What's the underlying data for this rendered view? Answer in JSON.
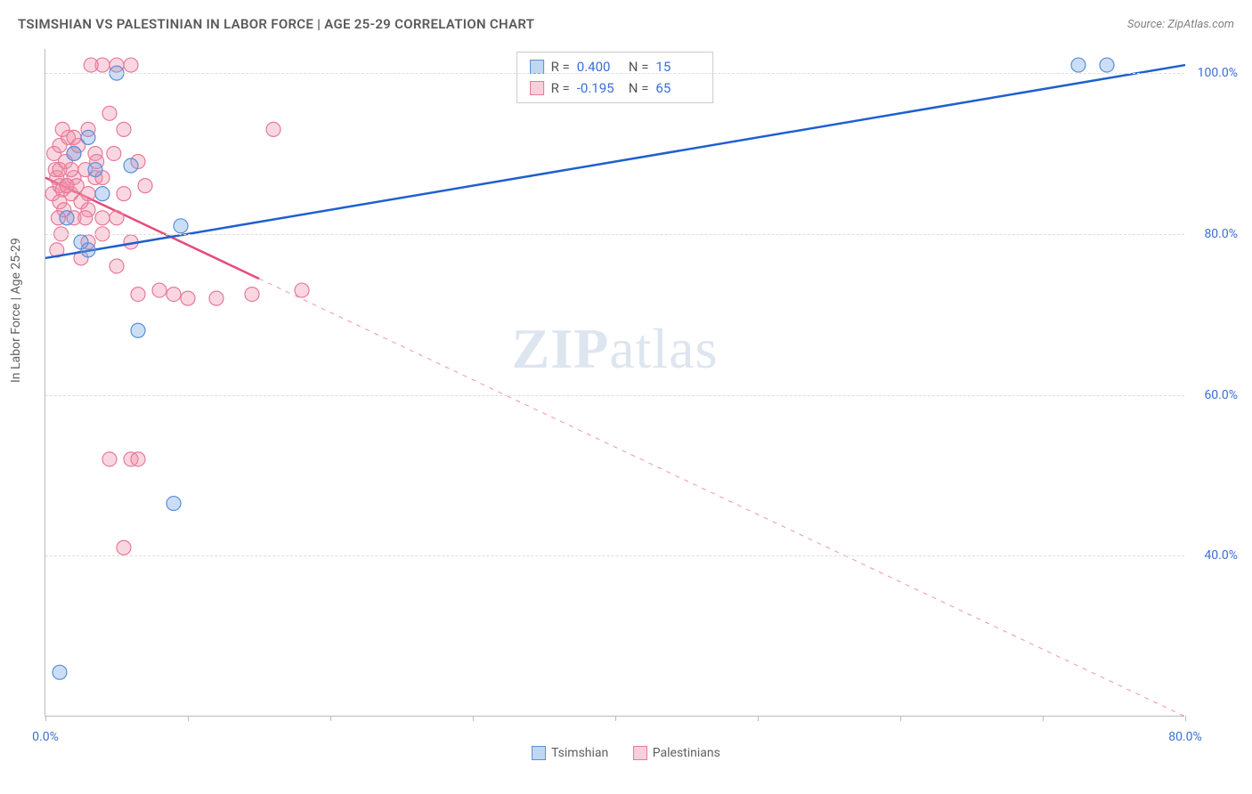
{
  "title": "TSIMSHIAN VS PALESTINIAN IN LABOR FORCE | AGE 25-29 CORRELATION CHART",
  "source_label": "Source: ZipAtlas.com",
  "y_axis_label": "In Labor Force | Age 25-29",
  "watermark": {
    "bold": "ZIP",
    "rest": "atlas"
  },
  "chart": {
    "type": "scatter",
    "xlim": [
      0,
      80
    ],
    "ylim": [
      20,
      103
    ],
    "x_ticks": [
      0,
      10,
      20,
      30,
      40,
      50,
      60,
      70,
      80
    ],
    "x_tick_labels": {
      "0": "0.0%",
      "80": "80.0%"
    },
    "y_ticks": [
      40,
      60,
      80,
      100
    ],
    "y_tick_labels": [
      "40.0%",
      "60.0%",
      "80.0%",
      "100.0%"
    ],
    "grid_color": "#dddddd",
    "axis_color": "#bbbbbb",
    "background_color": "#ffffff",
    "x_label_color": "#3b6fd6",
    "y_label_color": "#3b6fd6",
    "axis_text_color": "#606060"
  },
  "series": {
    "tsimshian": {
      "label": "Tsimshian",
      "marker_fill": "rgba(110,160,225,0.35)",
      "marker_stroke": "#5a8fd8",
      "line_color": "#1f5fd0",
      "line_width": 2.5,
      "R_label": "R =",
      "R_value": "0.400",
      "N_label": "N =",
      "N_value": "15",
      "swatch_fill": "rgba(130,175,230,0.5)",
      "swatch_border": "#5a8fd8",
      "trend": {
        "x1": 0,
        "y1": 77,
        "x2": 80,
        "y2": 101,
        "solid_until_x": 80
      },
      "points": [
        [
          1.0,
          25.5
        ],
        [
          3.0,
          92.0
        ],
        [
          9.0,
          46.5
        ],
        [
          2.5,
          79.0
        ],
        [
          3.5,
          88.0
        ],
        [
          6.0,
          88.5
        ],
        [
          9.5,
          81.0
        ],
        [
          6.5,
          68.0
        ],
        [
          2.0,
          90.0
        ],
        [
          4.0,
          85.0
        ],
        [
          72.5,
          101.0
        ],
        [
          74.5,
          101.0
        ],
        [
          5.0,
          100.0
        ],
        [
          1.5,
          82.0
        ],
        [
          3.0,
          78.0
        ]
      ]
    },
    "palestinians": {
      "label": "Palestinians",
      "marker_fill": "rgba(240,140,165,0.35)",
      "marker_stroke": "#e67a99",
      "line_color": "#e84b7a",
      "line_width": 2.5,
      "R_label": "R =",
      "R_value": "-0.195",
      "N_label": "N =",
      "N_value": "65",
      "swatch_fill": "rgba(245,160,185,0.5)",
      "swatch_border": "#e67a99",
      "trend": {
        "x1": 0,
        "y1": 87,
        "x2": 80,
        "y2": 20,
        "solid_until_x": 15
      },
      "points": [
        [
          0.5,
          85
        ],
        [
          0.8,
          87
        ],
        [
          1.0,
          86
        ],
        [
          1.2,
          85.5
        ],
        [
          0.7,
          88
        ],
        [
          1.5,
          86
        ],
        [
          1.0,
          84
        ],
        [
          1.3,
          83
        ],
        [
          0.6,
          90
        ],
        [
          1.8,
          85
        ],
        [
          2.0,
          87
        ],
        [
          1.0,
          91
        ],
        [
          2.2,
          86
        ],
        [
          0.9,
          82
        ],
        [
          1.4,
          89
        ],
        [
          2.5,
          84
        ],
        [
          1.1,
          80
        ],
        [
          2.0,
          90
        ],
        [
          2.8,
          88
        ],
        [
          1.6,
          92
        ],
        [
          3.0,
          85
        ],
        [
          0.8,
          78
        ],
        [
          2.3,
          91
        ],
        [
          3.5,
          87
        ],
        [
          1.2,
          93
        ],
        [
          4.0,
          101
        ],
        [
          5.0,
          101
        ],
        [
          3.2,
          101
        ],
        [
          4.5,
          95
        ],
        [
          6.0,
          101
        ],
        [
          3.0,
          93
        ],
        [
          5.5,
          93
        ],
        [
          16.0,
          93
        ],
        [
          4.8,
          90
        ],
        [
          6.5,
          89
        ],
        [
          4.0,
          82
        ],
        [
          6.0,
          79
        ],
        [
          7.0,
          86
        ],
        [
          5.0,
          76
        ],
        [
          6.5,
          72.5
        ],
        [
          8.0,
          73
        ],
        [
          9.0,
          72.5
        ],
        [
          10.0,
          72
        ],
        [
          12.0,
          72
        ],
        [
          14.5,
          72.5
        ],
        [
          18.0,
          73
        ],
        [
          4.5,
          52
        ],
        [
          6.0,
          52
        ],
        [
          6.5,
          52
        ],
        [
          5.5,
          41
        ],
        [
          2.0,
          82
        ],
        [
          3.0,
          79
        ],
        [
          4.0,
          87
        ],
        [
          2.5,
          77
        ],
        [
          1.8,
          88
        ],
        [
          3.5,
          90
        ],
        [
          2.0,
          92
        ],
        [
          1.0,
          88
        ],
        [
          5.0,
          82
        ],
        [
          3.0,
          83
        ],
        [
          4.0,
          80
        ],
        [
          5.5,
          85
        ],
        [
          1.5,
          86
        ],
        [
          2.8,
          82
        ],
        [
          3.6,
          89
        ]
      ]
    }
  },
  "legend_bottom": {
    "items": [
      {
        "key": "tsimshian",
        "label": "Tsimshian"
      },
      {
        "key": "palestinians",
        "label": "Palestinians"
      }
    ]
  }
}
